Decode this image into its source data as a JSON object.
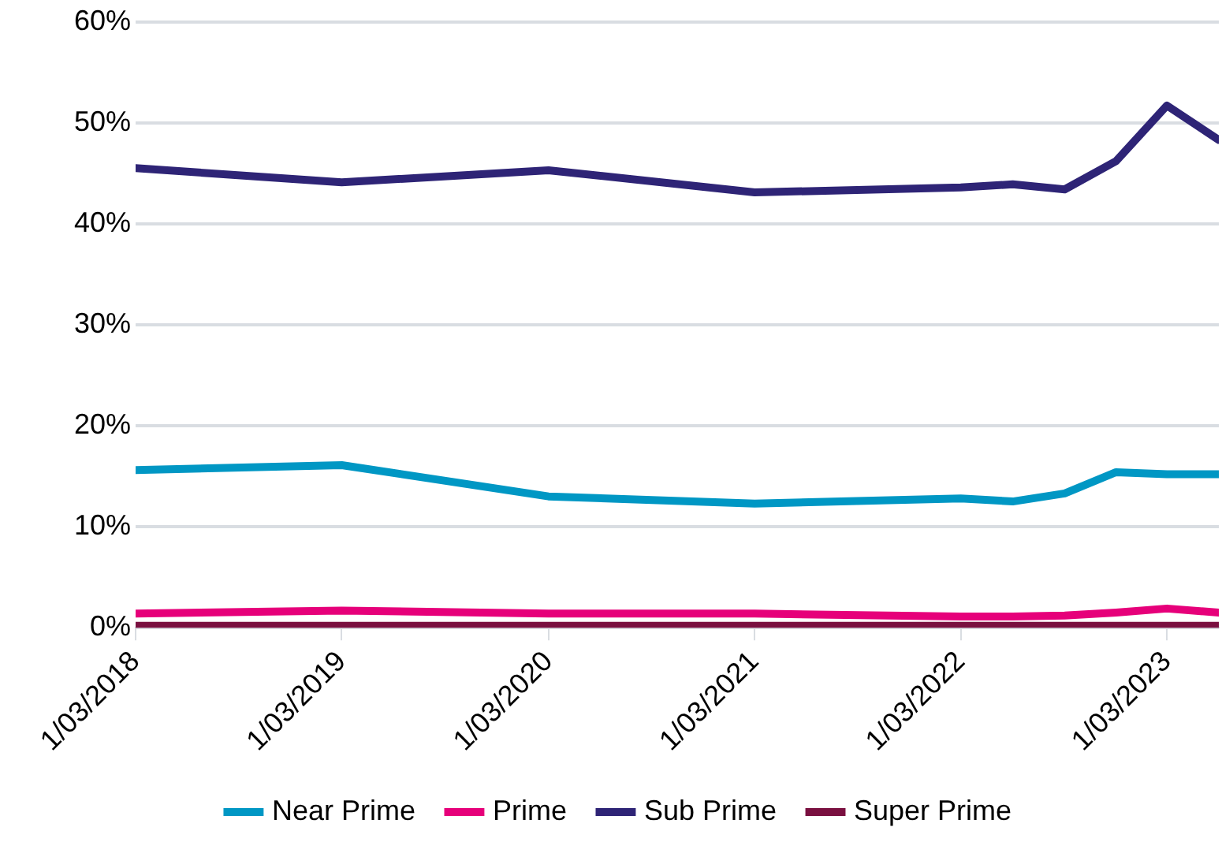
{
  "chart_data": {
    "type": "line",
    "x": [
      "2018-03-01",
      "2019-03-01",
      "2020-03-01",
      "2021-03-01",
      "2022-03-01",
      "2022-06-01",
      "2022-09-01",
      "2022-12-01",
      "2023-03-01",
      "2023-06-01"
    ],
    "series": [
      {
        "name": "Near Prime",
        "color": "#0097c4",
        "values": [
          15.6,
          16.1,
          13.0,
          12.3,
          12.8,
          12.5,
          13.3,
          15.4,
          15.2,
          15.2
        ]
      },
      {
        "name": "Prime",
        "color": "#e6007a",
        "values": [
          1.4,
          1.7,
          1.4,
          1.4,
          1.1,
          1.1,
          1.2,
          1.5,
          1.9,
          1.5
        ]
      },
      {
        "name": "Sub Prime",
        "color": "#2e2476",
        "values": [
          45.5,
          44.1,
          45.3,
          43.1,
          43.6,
          43.9,
          43.4,
          46.2,
          51.7,
          48.3
        ]
      },
      {
        "name": "Super Prime",
        "color": "#7a1040",
        "values": [
          0.2,
          0.2,
          0.2,
          0.2,
          0.2,
          0.2,
          0.2,
          0.2,
          0.2,
          0.2
        ]
      }
    ],
    "xlim": [
      "2018-03-01",
      "2023-06-01"
    ],
    "xticks": [
      {
        "value": "2018-03-01",
        "label": "1/03/2018"
      },
      {
        "value": "2019-03-01",
        "label": "1/03/2019"
      },
      {
        "value": "2020-03-01",
        "label": "1/03/2020"
      },
      {
        "value": "2021-03-01",
        "label": "1/03/2021"
      },
      {
        "value": "2022-03-01",
        "label": "1/03/2022"
      },
      {
        "value": "2023-03-01",
        "label": "1/03/2023"
      }
    ],
    "ylim": [
      0,
      60
    ],
    "yticks": [
      {
        "value": 0,
        "label": "0%"
      },
      {
        "value": 10,
        "label": "10%"
      },
      {
        "value": 20,
        "label": "20%"
      },
      {
        "value": 30,
        "label": "30%"
      },
      {
        "value": 40,
        "label": "40%"
      },
      {
        "value": 50,
        "label": "50%"
      },
      {
        "value": 60,
        "label": "60%"
      }
    ],
    "grid": "y",
    "legend": "bottom",
    "marker": "none",
    "line_style": "solid"
  }
}
